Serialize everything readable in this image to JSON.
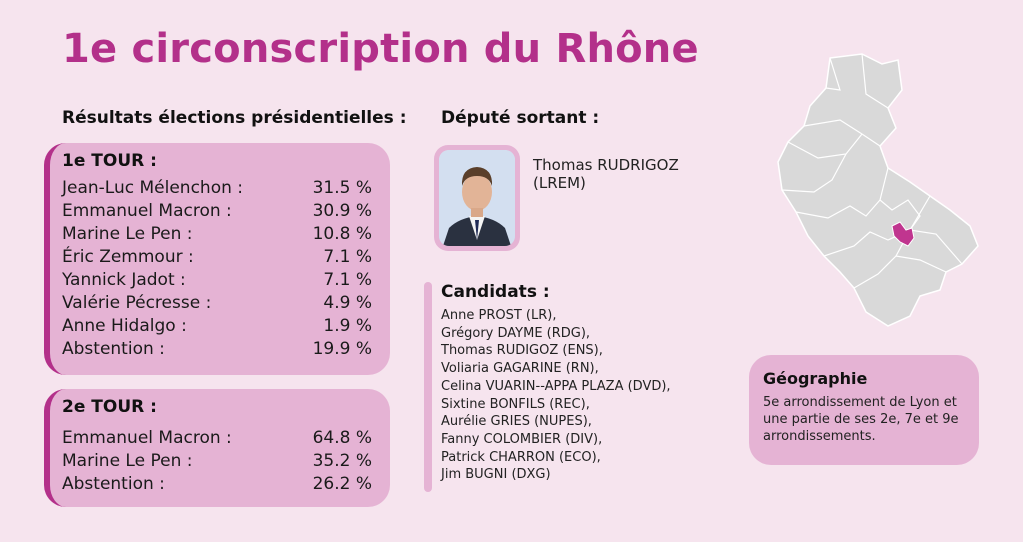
{
  "title": "1e circonscription du Rhône",
  "results_heading": "Résultats élections présidentielles :",
  "tour1": {
    "label": "1e TOUR :",
    "rows": [
      {
        "name": "Jean-Luc Mélenchon :",
        "value": "31.5 %"
      },
      {
        "name": "Emmanuel Macron :",
        "value": "30.9 %"
      },
      {
        "name": "Marine Le Pen :",
        "value": "10.8 %"
      },
      {
        "name": "Éric Zemmour :",
        "value": "7.1 %"
      },
      {
        "name": "Yannick Jadot :",
        "value": "7.1 %"
      },
      {
        "name": "Valérie Pécresse :",
        "value": "4.9 %"
      },
      {
        "name": "Anne Hidalgo :",
        "value": "1.9 %"
      },
      {
        "name": "Abstention :",
        "value": "19.9 %"
      }
    ]
  },
  "tour2": {
    "label": "2e TOUR :",
    "rows": [
      {
        "name": "Emmanuel Macron :",
        "value": "64.8 %"
      },
      {
        "name": "Marine Le Pen :",
        "value": "35.2 %"
      },
      {
        "name": "Abstention :",
        "value": "26.2 %"
      }
    ]
  },
  "deputy": {
    "heading": "Député sortant :",
    "name": "Thomas RUDRIGOZ",
    "party": "(LREM)"
  },
  "candidates": {
    "heading": "Candidats :",
    "list": [
      "Anne PROST (LR),",
      "Grégory DAYME (RDG),",
      "Thomas RUDIGOZ (ENS),",
      "Voliaria GAGARINE (RN),",
      "Celina VUARIN--APPA PLAZA (DVD),",
      "Sixtine BONFILS (REC),",
      "Aurélie GRIES (NUPES),",
      "Fanny COLOMBIER (DIV),",
      "Patrick CHARRON (ECO),",
      "Jim BUGNI (DXG)"
    ]
  },
  "geography": {
    "heading": "Géographie",
    "text": "5e arrondissement de Lyon et une partie de ses 2e, 7e et 9e arrondissements."
  },
  "colors": {
    "accent": "#b3308a",
    "box": "#e5b3d4",
    "background": "#f6e4ee",
    "map_fill": "#d9d9d9",
    "map_highlight": "#c0358f"
  }
}
